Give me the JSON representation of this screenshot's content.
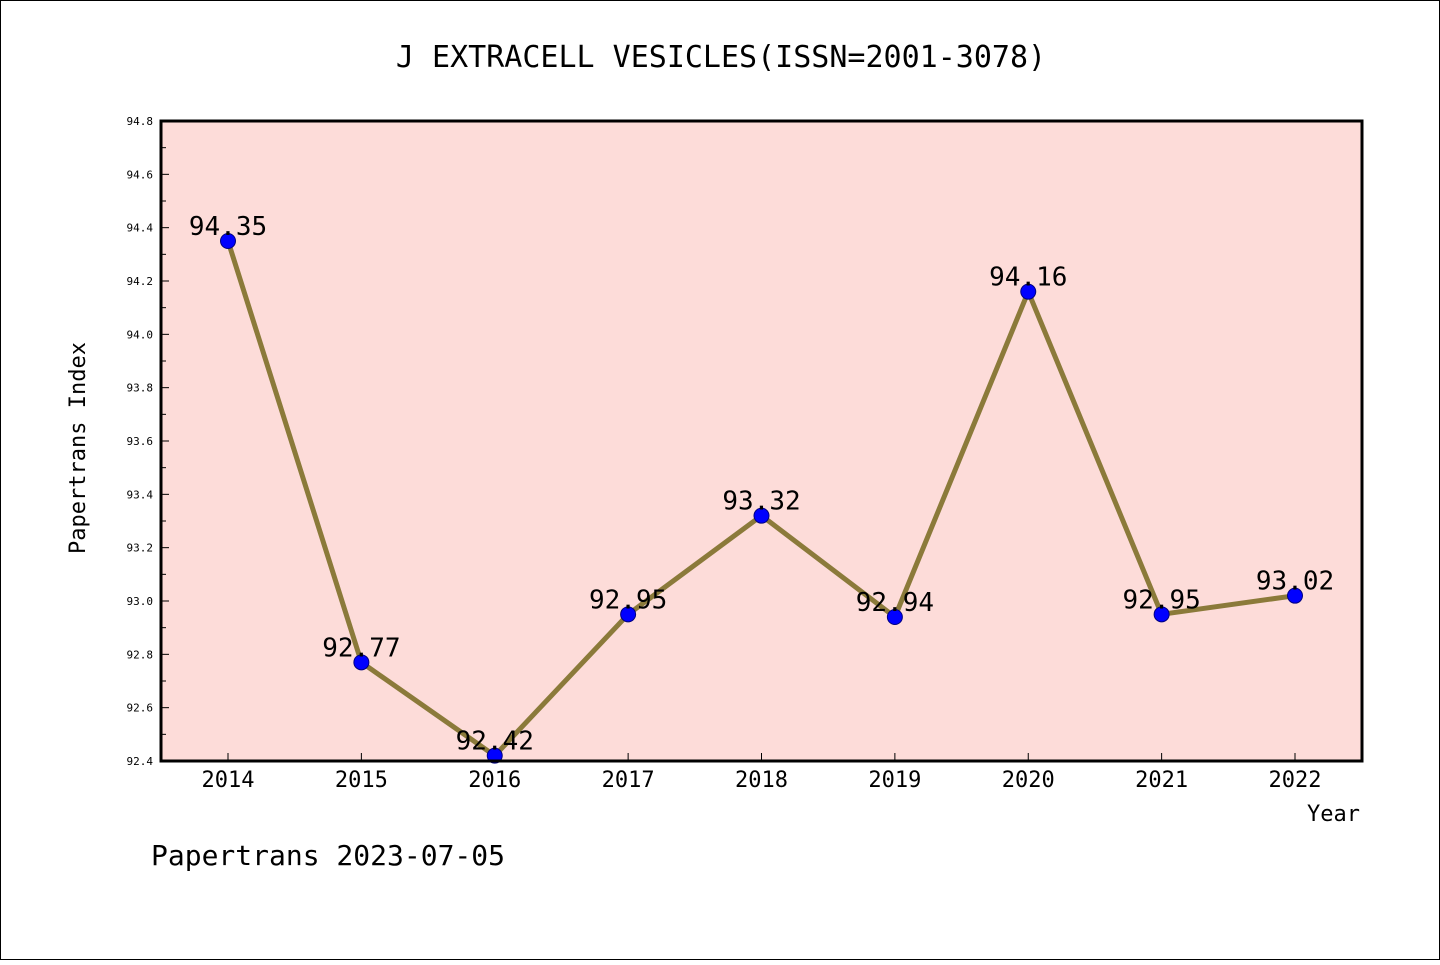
{
  "chart_data": {
    "type": "line",
    "title": "J EXTRACELL VESICLES(ISSN=2001-3078)",
    "xlabel": "Year",
    "ylabel": "Papertrans Index",
    "footer": "Papertrans 2023-07-05",
    "categories": [
      "2014",
      "2015",
      "2016",
      "2017",
      "2018",
      "2019",
      "2020",
      "2021",
      "2022"
    ],
    "values": [
      94.35,
      92.77,
      92.42,
      92.95,
      93.32,
      92.94,
      94.16,
      92.95,
      93.02
    ],
    "data_labels": [
      "94.35",
      "92.77",
      "92.42",
      "92.95",
      "93.32",
      "92.94",
      "94.16",
      "92.95",
      "93.02"
    ],
    "ylim": [
      92.4,
      94.8
    ],
    "yticks": [
      "92.4",
      "92.6",
      "92.8",
      "93.0",
      "93.2",
      "93.4",
      "93.6",
      "93.8",
      "94.0",
      "94.2",
      "94.4",
      "94.6",
      "94.8"
    ],
    "grid": false,
    "legend": "none",
    "colors": {
      "plot_background": "#fddcd9",
      "line": "#8b7a3a",
      "marker_fill": "#0000ff",
      "marker_edge": "#000080"
    }
  }
}
